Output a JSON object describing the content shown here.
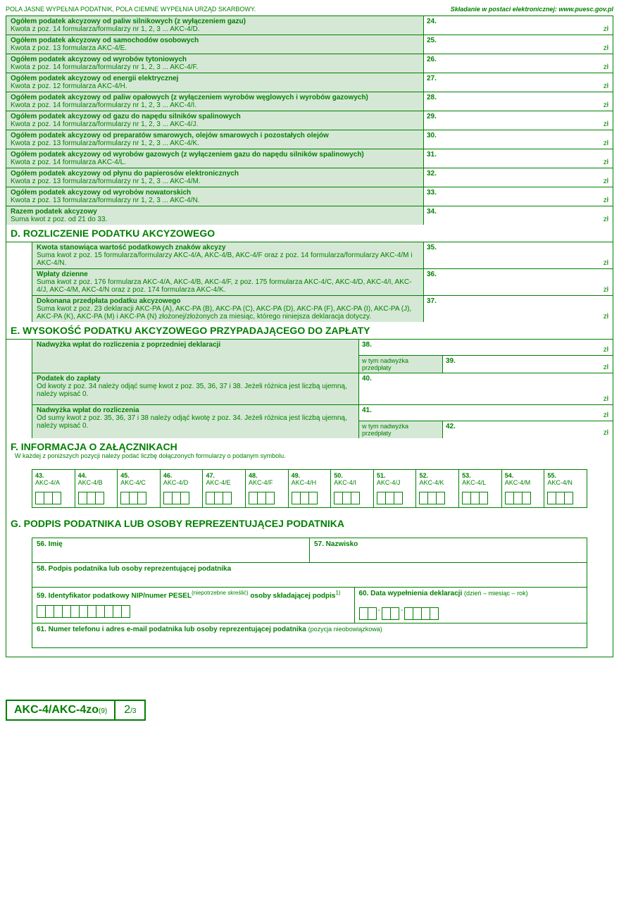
{
  "header": {
    "left": "POLA JASNE WYPEŁNIA PODATNIK, POLA CIEMNE WYPEŁNIA URZĄD SKARBOWY.",
    "right": "Składanie w postaci elektronicznej: www.puesc.gov.pl"
  },
  "unit": "zł",
  "rows": [
    {
      "num": "24.",
      "title": "Ogółem podatek akcyzowy od paliw silnikowych (z wyłączeniem gazu)",
      "sub": "Kwota z poz. 14 formularza/formularzy nr 1, 2, 3 ...   AKC-4/D."
    },
    {
      "num": "25.",
      "title": "Ogółem podatek akcyzowy od samochodów osobowych",
      "sub": "Kwota z poz. 13 formularza AKC-4/E."
    },
    {
      "num": "26.",
      "title": "Ogółem podatek akcyzowy od wyrobów tytoniowych",
      "sub": "Kwota z poz. 14 formularza/formularzy nr 1, 2, 3 ...   AKC-4/F."
    },
    {
      "num": "27.",
      "title": "Ogółem podatek akcyzowy od energii elektrycznej",
      "sub": "Kwota z poz. 12 formularza AKC-4/H."
    },
    {
      "num": "28.",
      "title": "Ogółem podatek akcyzowy od paliw opałowych (z wyłączeniem wyrobów węglowych i wyrobów gazowych)",
      "sub": "Kwota z poz. 14 formularza/formularzy nr 1, 2, 3 ...   AKC-4/I."
    },
    {
      "num": "29.",
      "title": "Ogółem podatek akcyzowy od gazu do napędu silników spalinowych",
      "sub": "Kwota z poz. 14 formularza/formularzy nr 1, 2, 3 ...   AKC-4/J."
    },
    {
      "num": "30.",
      "title": "Ogółem podatek akcyzowy od preparatów smarowych, olejów smarowych i pozostałych olejów",
      "sub": "Kwota z poz. 13 formularza/formularzy nr 1, 2, 3 ...   AKC-4/K."
    },
    {
      "num": "31.",
      "title": "Ogółem podatek akcyzowy od wyrobów gazowych (z wyłączeniem gazu do napędu silników spalinowych)",
      "sub": "Kwota z poz. 14 formularza AKC-4/L."
    },
    {
      "num": "32.",
      "title": "Ogółem podatek akcyzowy od płynu do papierosów elektronicznych",
      "sub": "Kwota z poz. 13 formularza/formularzy nr 1, 2, 3 ...   AKC-4/M."
    },
    {
      "num": "33.",
      "title": "Ogółem podatek akcyzowy od wyrobów nowatorskich",
      "sub": "Kwota z poz. 13 formularza/formularzy nr 1, 2, 3 ...   AKC-4/N."
    },
    {
      "num": "34.",
      "title": "Razem podatek akcyzowy",
      "sub": "Suma kwot z poz. od 21 do 33."
    }
  ],
  "sectionD": {
    "title": "D. ROZLICZENIE PODATKU AKCYZOWEGO",
    "rows": [
      {
        "num": "35.",
        "title": "Kwota stanowiąca wartość podatkowych znaków akcyzy",
        "sub": "Suma kwot z poz. 15 formularza/formularzy AKC-4/A, AKC-4/B, AKC-4/F oraz z poz. 14 formularza/formularzy AKC-4/M i AKC-4/N."
      },
      {
        "num": "36.",
        "title": "Wpłaty dzienne",
        "sub": "Suma kwot z poz. 176 formularza AKC-4/A, AKC-4/B, AKC-4/F, z poz. 175 formularza AKC-4/C, AKC-4/D, AKC-4/I, AKC-4/J, AKC-4/M, AKC-4/N oraz z poz. 174 formularza AKC-4/K."
      },
      {
        "num": "37.",
        "title": "Dokonana przedpłata podatku akcyzowego",
        "sub": "Suma kwot z poz. 23 deklaracji AKC-PA (A), AKC-PA (B), AKC-PA (C), AKC-PA (D), AKC-PA (F), AKC-PA (I), AKC-PA (J), AKC-PA (K), AKC-PA (M) i AKC-PA (N) złożonej/złożonych za miesiąc, którego niniejsza deklaracja dotyczy."
      }
    ]
  },
  "sectionE": {
    "title": "E. WYSOKOŚĆ PODATKU AKCYZOWEGO PRZYPADAJĄCEGO DO ZAPŁATY",
    "subLabel": "w tym nadwyżka przedpłaty",
    "rows": [
      {
        "title": "Nadwyżka wpłat do rozliczenia z poprzedniej deklaracji",
        "sub": "",
        "num1": "38.",
        "num2": "39."
      },
      {
        "title": "Podatek do zapłaty",
        "sub": "Od kwoty z poz. 34 należy odjąć sumę kwot z poz. 35, 36, 37 i 38. Jeżeli różnica jest liczbą ujemną, należy wpisać 0.",
        "num1": "40.",
        "num2": null
      },
      {
        "title": "Nadwyżka wpłat do rozliczenia",
        "sub": "Od sumy kwot z poz. 35, 36, 37 i 38 należy odjąć kwotę z poz. 34. Jeżeli różnica jest liczbą ujemną, należy wpisać 0.",
        "num1": "41.",
        "num2": "42."
      }
    ]
  },
  "sectionF": {
    "title": "F. INFORMACJA O ZAŁĄCZNIKACH",
    "instr": "W każdej z poniższych pozycji należy podać liczbę dołączonych formularzy o podanym symbolu.",
    "cells": [
      {
        "num": "43.",
        "code": "AKC-4/A"
      },
      {
        "num": "44.",
        "code": "AKC-4/B"
      },
      {
        "num": "45.",
        "code": "AKC-4/C"
      },
      {
        "num": "46.",
        "code": "AKC-4/D"
      },
      {
        "num": "47.",
        "code": "AKC-4/E"
      },
      {
        "num": "48.",
        "code": "AKC-4/F"
      },
      {
        "num": "49.",
        "code": "AKC-4/H"
      },
      {
        "num": "50.",
        "code": "AKC-4/I"
      },
      {
        "num": "51.",
        "code": "AKC-4/J"
      },
      {
        "num": "52.",
        "code": "AKC-4/K"
      },
      {
        "num": "53.",
        "code": "AKC-4/L"
      },
      {
        "num": "54.",
        "code": "AKC-4/M"
      },
      {
        "num": "55.",
        "code": "AKC-4/N"
      }
    ]
  },
  "sectionG": {
    "title": "G. PODPIS PODATNIKA LUB OSOBY REPREZENTUJĄCEJ PODATNIKA",
    "f56": "56. Imię",
    "f57": "57. Nazwisko",
    "f58": "58. Podpis podatnika lub osoby reprezentującej podatnika",
    "f59_a": "59. Identyfikator podatkowy NIP/numer PESEL",
    "f59_b": "(niepotrzebne skreślić)",
    "f59_c": " osoby składającej podpis",
    "f59_d": "1)",
    "f60_a": "60. Data wypełnienia deklaracji ",
    "f60_b": "(dzień – miesiąc – rok)",
    "f61_a": "61. Numer telefonu i adres e-mail podatnika lub osoby reprezentującej podatnika ",
    "f61_b": "(pozycja nieobowiązkowa)"
  },
  "footer": {
    "name": "AKC-4/AKC-4zo",
    "ver": "(9)",
    "page": "2",
    "pages": "/3"
  }
}
